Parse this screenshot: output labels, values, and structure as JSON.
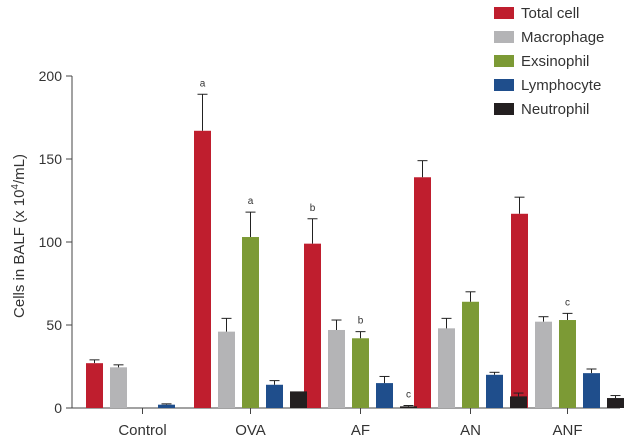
{
  "chart_data": {
    "type": "bar",
    "title": "",
    "xlabel": "",
    "ylabel_main": "Cells in BALF (x 10",
    "ylabel_sup": "4",
    "ylabel_end": "/mL)",
    "ylim": [
      0,
      200
    ],
    "yticks": [
      0,
      50,
      100,
      150,
      200
    ],
    "categories": [
      "Control",
      "OVA",
      "AF",
      "AN",
      "ANF"
    ],
    "series": [
      {
        "name": "Total cell",
        "color": "#bf1e2e",
        "values": [
          27,
          167,
          99,
          139,
          117
        ],
        "errors": [
          2,
          22,
          15,
          10,
          10
        ],
        "labels": [
          "",
          "a",
          "b",
          "",
          ""
        ]
      },
      {
        "name": "Macrophage",
        "color": "#b4b4b6",
        "values": [
          24.5,
          46,
          47,
          48,
          52
        ],
        "errors": [
          1.5,
          8,
          6,
          6,
          3
        ],
        "labels": [
          "",
          "",
          "",
          "",
          ""
        ]
      },
      {
        "name": "Exsinophil",
        "color": "#7c9a35",
        "values": [
          0,
          103,
          42,
          64,
          53
        ],
        "errors": [
          0,
          15,
          4,
          6,
          4
        ],
        "labels": [
          "",
          "a",
          "b",
          "",
          "c"
        ]
      },
      {
        "name": "Lymphocyte",
        "color": "#1f4e8c",
        "values": [
          2,
          14,
          15,
          20,
          21
        ],
        "errors": [
          0.5,
          2.5,
          4,
          1.5,
          2.5
        ],
        "labels": [
          "",
          "",
          "",
          "",
          ""
        ]
      },
      {
        "name": "Neutrophil",
        "color": "#231f20",
        "values": [
          0,
          10,
          1,
          7,
          6
        ],
        "errors": [
          0,
          0,
          0.5,
          2,
          1.5
        ],
        "labels": [
          "",
          "",
          "c",
          "",
          ""
        ]
      }
    ],
    "legend_position": "top-right",
    "grid": false
  }
}
